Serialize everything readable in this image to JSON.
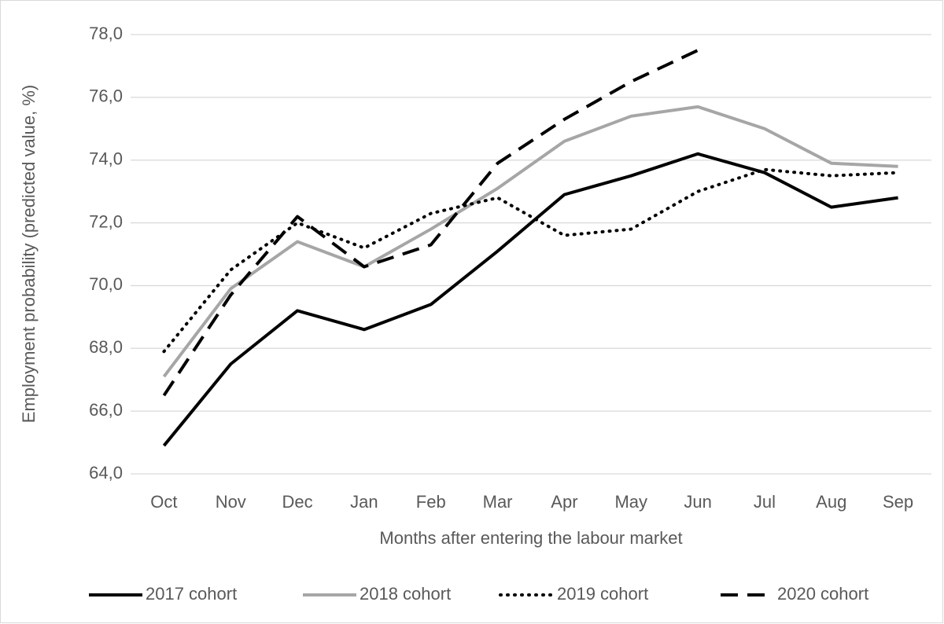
{
  "chart_data": {
    "type": "line",
    "x_label": "Months after entering the labour market",
    "y_label": "Employment probability (predicted value, %)",
    "categories": [
      "Oct",
      "Nov",
      "Dec",
      "Jan",
      "Feb",
      "Mar",
      "Apr",
      "May",
      "Jun",
      "Jul",
      "Aug",
      "Sep"
    ],
    "series": [
      {
        "name": "2017 cohort",
        "color": "#000000",
        "style": "solid",
        "values": [
          64.9,
          67.5,
          69.2,
          68.6,
          69.4,
          71.1,
          72.9,
          73.5,
          74.2,
          73.6,
          72.5,
          72.8
        ]
      },
      {
        "name": "2018 cohort",
        "color": "#a6a6a6",
        "style": "solid",
        "values": [
          67.1,
          69.9,
          71.4,
          70.6,
          71.8,
          73.1,
          74.6,
          75.4,
          75.7,
          75.0,
          73.9,
          73.8
        ]
      },
      {
        "name": "2019 cohort",
        "color": "#000000",
        "style": "dotted",
        "values": [
          67.9,
          70.5,
          72.0,
          71.2,
          72.3,
          72.8,
          71.6,
          71.8,
          73.0,
          73.7,
          73.5,
          73.6
        ]
      },
      {
        "name": "2020 cohort",
        "color": "#000000",
        "style": "dashed",
        "values": [
          66.5,
          69.7,
          72.2,
          70.6,
          71.3,
          73.9,
          75.3,
          76.5,
          77.5,
          null,
          null,
          null
        ]
      }
    ],
    "ylim": [
      64,
      78
    ],
    "yticks": [
      {
        "value": 64,
        "label": "64,0"
      },
      {
        "value": 66,
        "label": "66,0"
      },
      {
        "value": 68,
        "label": "68,0"
      },
      {
        "value": 70,
        "label": "70,0"
      },
      {
        "value": 72,
        "label": "72,0"
      },
      {
        "value": 74,
        "label": "74,0"
      },
      {
        "value": 76,
        "label": "76,0"
      },
      {
        "value": 78,
        "label": "78,0"
      }
    ],
    "grid": true,
    "legend": "bottom"
  }
}
